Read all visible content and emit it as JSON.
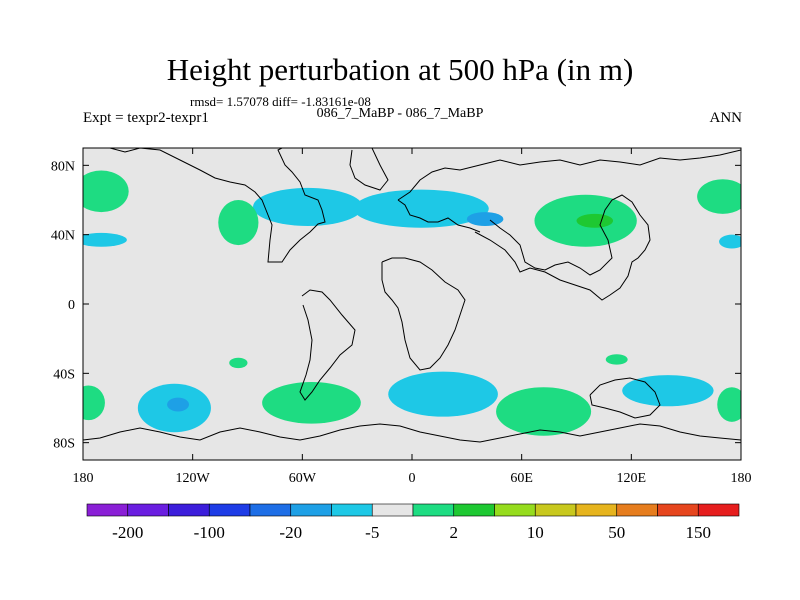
{
  "chart_data": {
    "type": "heatmap",
    "title": "Height perturbation at 500 hPa (in m)",
    "stats_text": "rmsd= 1.57078 diff= -1.83161e-08",
    "subtitle": "086_7_MaBP - 086_7_MaBP",
    "left_label": "Expt = texpr2-texpr1",
    "right_label": "ANN",
    "x_ticks": [
      {
        "lon": -180,
        "label": "180"
      },
      {
        "lon": -120,
        "label": "120W"
      },
      {
        "lon": -60,
        "label": "60W"
      },
      {
        "lon": 0,
        "label": "0"
      },
      {
        "lon": 60,
        "label": "60E"
      },
      {
        "lon": 120,
        "label": "120E"
      },
      {
        "lon": 180,
        "label": "180"
      }
    ],
    "y_ticks": [
      {
        "lat": 80,
        "label": "80N"
      },
      {
        "lat": 40,
        "label": "40N"
      },
      {
        "lat": 0,
        "label": "0"
      },
      {
        "lat": -40,
        "label": "40S"
      },
      {
        "lat": -80,
        "label": "80S"
      }
    ],
    "xlim": [
      -180,
      180
    ],
    "ylim": [
      -90,
      90
    ],
    "colorbar": {
      "labels": [
        "-200",
        "-100",
        "-20",
        "-5",
        "2",
        "10",
        "50",
        "150"
      ],
      "colors": [
        "#8a1fd6",
        "#6a1ee0",
        "#3c1edb",
        "#1e3ce6",
        "#1e6ee6",
        "#1ea0e6",
        "#1ec8e6",
        "#e6e6e6",
        "#1edc82",
        "#1ec832",
        "#96dc1e",
        "#c8c81e",
        "#e6b41e",
        "#e67d1e",
        "#e6461e",
        "#e61e1e"
      ]
    },
    "field_background": "#e6e6e6",
    "regions": [
      {
        "lon": -57,
        "lat": 56,
        "rx": 30,
        "ry": 11,
        "level": -5,
        "color": "#1ec8e6"
      },
      {
        "lon": 5,
        "lat": 55,
        "rx": 37,
        "ry": 11,
        "level": -5,
        "color": "#1ec8e6"
      },
      {
        "lon": 40,
        "lat": 49,
        "rx": 10,
        "ry": 4,
        "level": -20,
        "color": "#1ea0e6"
      },
      {
        "lon": 95,
        "lat": 48,
        "rx": 28,
        "ry": 15,
        "level": 2,
        "color": "#1edc82"
      },
      {
        "lon": 100,
        "lat": 48,
        "rx": 10,
        "ry": 4,
        "level": 10,
        "color": "#1ec832"
      },
      {
        "lon": -170,
        "lat": 65,
        "rx": 15,
        "ry": 12,
        "level": 2,
        "color": "#1edc82"
      },
      {
        "lon": 170,
        "lat": 62,
        "rx": 14,
        "ry": 10,
        "level": 2,
        "color": "#1edc82"
      },
      {
        "lon": -170,
        "lat": 37,
        "rx": 14,
        "ry": 4,
        "level": -5,
        "color": "#1ec8e6"
      },
      {
        "lon": 175,
        "lat": 36,
        "rx": 7,
        "ry": 4,
        "level": -5,
        "color": "#1ec8e6"
      },
      {
        "lon": -95,
        "lat": 47,
        "rx": 11,
        "ry": 13,
        "level": 2,
        "color": "#1edc82"
      },
      {
        "lon": -130,
        "lat": -60,
        "rx": 20,
        "ry": 14,
        "level": -5,
        "color": "#1ec8e6"
      },
      {
        "lon": -128,
        "lat": -58,
        "rx": 6,
        "ry": 4,
        "level": -20,
        "color": "#1ea0e6"
      },
      {
        "lon": -55,
        "lat": -57,
        "rx": 27,
        "ry": 12,
        "level": 2,
        "color": "#1edc82"
      },
      {
        "lon": 17,
        "lat": -52,
        "rx": 30,
        "ry": 13,
        "level": -5,
        "color": "#1ec8e6"
      },
      {
        "lon": 72,
        "lat": -62,
        "rx": 26,
        "ry": 14,
        "level": 2,
        "color": "#1edc82"
      },
      {
        "lon": 140,
        "lat": -50,
        "rx": 25,
        "ry": 9,
        "level": -5,
        "color": "#1ec8e6"
      },
      {
        "lon": -177,
        "lat": -57,
        "rx": 9,
        "ry": 10,
        "level": 2,
        "color": "#1edc82"
      },
      {
        "lon": 175,
        "lat": -58,
        "rx": 8,
        "ry": 10,
        "level": 2,
        "color": "#1edc82"
      },
      {
        "lon": -95,
        "lat": -34,
        "rx": 5,
        "ry": 3,
        "level": 2,
        "color": "#1edc82"
      },
      {
        "lon": 112,
        "lat": -32,
        "rx": 6,
        "ry": 3,
        "level": 2,
        "color": "#1edc82"
      }
    ]
  }
}
